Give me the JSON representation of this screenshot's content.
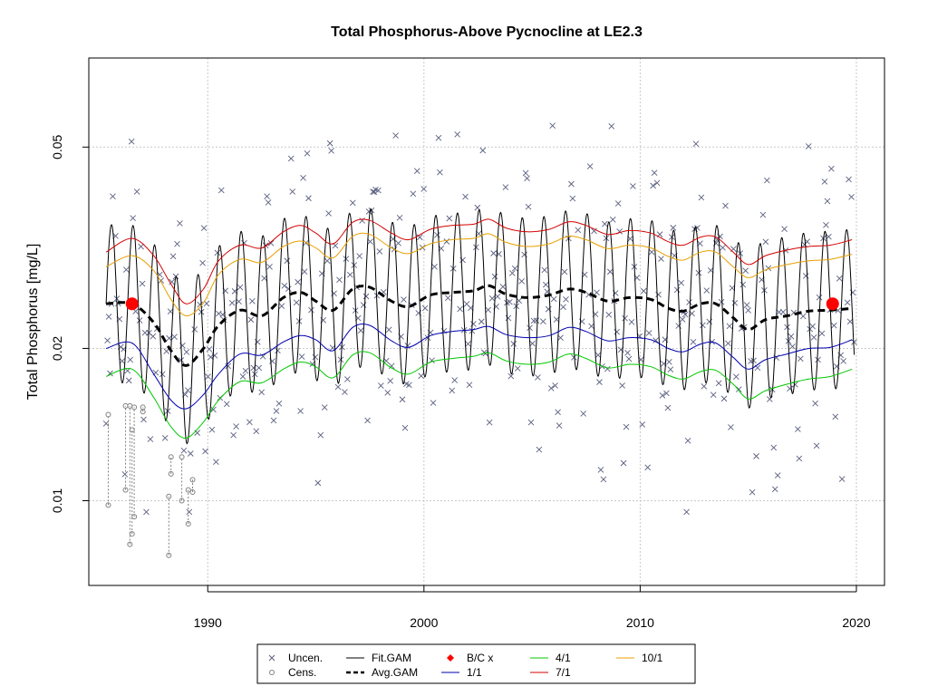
{
  "chart_data": {
    "type": "line",
    "title": "Total Phosphorus-Above Pycnocline at LE2.3",
    "xlabel": "",
    "ylabel": "Total Phosphorus [mg/L]",
    "y_scale": "log",
    "xlim": [
      1984.5,
      2021.3
    ],
    "ylim": [
      0.0068,
      0.075
    ],
    "x_ticks": [
      "1990",
      "2000",
      "2010",
      "2020"
    ],
    "x_tick_values": [
      1990,
      2000,
      2010,
      2020
    ],
    "y_ticks": [
      "0.01",
      "0.02",
      "0.05"
    ],
    "y_tick_values": [
      0.01,
      0.02,
      0.05
    ],
    "grid": true,
    "legend_position": "bottom",
    "series": [
      {
        "name": "Fit.GAM",
        "color": "#000000",
        "style": "solid",
        "x": [
          1985.3,
          2019.9
        ],
        "mean": [
          0.0245,
          0.0245
        ],
        "note_amplitude": "seasonal, about ±0.009"
      },
      {
        "name": "Avg.GAM",
        "color": "#000000",
        "style": "dashed",
        "x": [
          1985.3,
          1986.5,
          1987.5,
          1988.3,
          1989.0,
          1989.8,
          1990.5,
          1991.5,
          1992.5,
          1993.5,
          1994.3,
          1995.0,
          1995.8,
          1996.7,
          1997.5,
          1998.5,
          1999.3,
          2000.3,
          2001.3,
          2002.3,
          2003.0,
          2003.8,
          2004.8,
          2005.8,
          2006.7,
          2007.5,
          2008.5,
          2009.5,
          2010.5,
          2011.3,
          2012.0,
          2012.8,
          2013.5,
          2014.3,
          2015.0,
          2015.8,
          2016.8,
          2017.8,
          2018.8,
          2019.8
        ],
        "values": [
          0.0245,
          0.0245,
          0.0225,
          0.0198,
          0.0185,
          0.02,
          0.0222,
          0.0238,
          0.0232,
          0.0252,
          0.0258,
          0.0248,
          0.0238,
          0.0262,
          0.0264,
          0.0248,
          0.0242,
          0.0255,
          0.0258,
          0.026,
          0.0266,
          0.0256,
          0.0252,
          0.0255,
          0.0262,
          0.0258,
          0.0248,
          0.0252,
          0.025,
          0.024,
          0.0237,
          0.0245,
          0.0245,
          0.023,
          0.0218,
          0.0228,
          0.0232,
          0.0237,
          0.0238,
          0.024
        ]
      },
      {
        "name": "1/1",
        "color": "#0000b0",
        "style": "solid",
        "x": [
          1985.3,
          1986.5,
          1987.5,
          1988.3,
          1989.0,
          1989.8,
          1990.5,
          1991.5,
          1992.5,
          1993.5,
          1994.3,
          1995.0,
          1995.8,
          1996.7,
          1997.5,
          1998.5,
          1999.3,
          2000.3,
          2001.3,
          2002.3,
          2003.0,
          2003.8,
          2004.8,
          2005.8,
          2006.7,
          2007.5,
          2008.5,
          2009.5,
          2010.5,
          2011.3,
          2012.0,
          2012.8,
          2013.5,
          2014.3,
          2015.0,
          2015.8,
          2016.8,
          2017.8,
          2018.8,
          2019.8
        ],
        "values": [
          0.02,
          0.0205,
          0.0178,
          0.0158,
          0.0152,
          0.0162,
          0.0178,
          0.0195,
          0.0194,
          0.0206,
          0.0212,
          0.0208,
          0.0198,
          0.022,
          0.0222,
          0.0207,
          0.0201,
          0.0212,
          0.0216,
          0.0218,
          0.0221,
          0.0213,
          0.021,
          0.0212,
          0.022,
          0.0216,
          0.0207,
          0.021,
          0.0208,
          0.02,
          0.0197,
          0.0204,
          0.0205,
          0.0192,
          0.0182,
          0.019,
          0.0195,
          0.02,
          0.0201,
          0.0208
        ]
      },
      {
        "name": "4/1",
        "color": "#00c800",
        "style": "solid",
        "x": [
          1985.3,
          1986.5,
          1987.5,
          1988.3,
          1989.0,
          1989.8,
          1990.5,
          1991.5,
          1992.5,
          1993.5,
          1994.3,
          1995.0,
          1995.8,
          1996.7,
          1997.5,
          1998.5,
          1999.3,
          2000.3,
          2001.3,
          2002.3,
          2003.0,
          2003.8,
          2004.8,
          2005.8,
          2006.7,
          2007.5,
          2008.5,
          2009.5,
          2010.5,
          2011.3,
          2012.0,
          2012.8,
          2013.5,
          2014.3,
          2015.0,
          2015.8,
          2016.8,
          2017.8,
          2018.8,
          2019.8
        ],
        "values": [
          0.0176,
          0.0182,
          0.016,
          0.014,
          0.0133,
          0.0143,
          0.0158,
          0.0172,
          0.0171,
          0.0182,
          0.0188,
          0.0184,
          0.0175,
          0.0194,
          0.0196,
          0.0183,
          0.0178,
          0.0188,
          0.0191,
          0.0193,
          0.0196,
          0.0189,
          0.0186,
          0.0188,
          0.0195,
          0.0191,
          0.0183,
          0.0186,
          0.0184,
          0.0177,
          0.0174,
          0.018,
          0.0181,
          0.017,
          0.0159,
          0.0165,
          0.017,
          0.0174,
          0.0176,
          0.0182
        ]
      },
      {
        "name": "7/1",
        "color": "#d40000",
        "style": "solid",
        "x": [
          1985.3,
          1986.5,
          1987.5,
          1988.3,
          1989.0,
          1989.8,
          1990.5,
          1991.5,
          1992.5,
          1993.5,
          1994.3,
          1995.0,
          1995.8,
          1996.7,
          1997.5,
          1998.5,
          1999.3,
          2000.3,
          2001.3,
          2002.3,
          2003.0,
          2003.8,
          2004.8,
          2005.8,
          2006.7,
          2007.5,
          2008.5,
          2009.5,
          2010.5,
          2011.3,
          2012.0,
          2012.8,
          2013.5,
          2014.3,
          2015.0,
          2015.8,
          2016.8,
          2017.8,
          2018.8,
          2019.8
        ],
        "values": [
          0.031,
          0.033,
          0.0305,
          0.0268,
          0.0245,
          0.0262,
          0.0298,
          0.032,
          0.0316,
          0.034,
          0.035,
          0.0338,
          0.0322,
          0.0355,
          0.0358,
          0.0338,
          0.0328,
          0.0344,
          0.035,
          0.0352,
          0.036,
          0.0346,
          0.034,
          0.0344,
          0.0356,
          0.035,
          0.0336,
          0.0342,
          0.0338,
          0.0325,
          0.032,
          0.0332,
          0.0332,
          0.031,
          0.0293,
          0.0305,
          0.0313,
          0.0318,
          0.032,
          0.0328
        ]
      },
      {
        "name": "10/1",
        "color": "#e8a000",
        "style": "solid",
        "x": [
          1985.3,
          1986.5,
          1987.5,
          1988.3,
          1989.0,
          1989.8,
          1990.5,
          1991.5,
          1992.5,
          1993.5,
          1994.3,
          1995.0,
          1995.8,
          1996.7,
          1997.5,
          1998.5,
          1999.3,
          2000.3,
          2001.3,
          2002.3,
          2003.0,
          2003.8,
          2004.8,
          2005.8,
          2006.7,
          2007.5,
          2008.5,
          2009.5,
          2010.5,
          2011.3,
          2012.0,
          2012.8,
          2013.5,
          2014.3,
          2015.0,
          2015.8,
          2016.8,
          2017.8,
          2018.8,
          2019.8
        ],
        "values": [
          0.029,
          0.0305,
          0.0285,
          0.025,
          0.0232,
          0.0246,
          0.028,
          0.03,
          0.0296,
          0.0318,
          0.0326,
          0.0316,
          0.0302,
          0.0333,
          0.0336,
          0.0316,
          0.0308,
          0.0322,
          0.0328,
          0.033,
          0.0337,
          0.0324,
          0.0318,
          0.0322,
          0.0333,
          0.0328,
          0.0315,
          0.032,
          0.0316,
          0.0304,
          0.0299,
          0.031,
          0.031,
          0.029,
          0.0276,
          0.0286,
          0.0293,
          0.0298,
          0.03,
          0.0307
        ]
      }
    ],
    "bc_points": [
      {
        "x": 1986.5,
        "y": 0.0245
      },
      {
        "x": 2018.9,
        "y": 0.0245
      }
    ],
    "legend": [
      {
        "label": "Uncen.",
        "marker": "x",
        "color": "#5a6080"
      },
      {
        "label": "Cens.",
        "marker": "o",
        "color": "#808080"
      },
      {
        "label": "Fit.GAM",
        "marker": "line",
        "color": "#000000"
      },
      {
        "label": "Avg.GAM",
        "marker": "dashed",
        "color": "#000000"
      },
      {
        "label": "B/C x",
        "marker": "diamond",
        "color": "#ff0000"
      },
      {
        "label": "1/1",
        "marker": "line",
        "color": "#0000b0"
      },
      {
        "label": "4/1",
        "marker": "line",
        "color": "#00c800"
      },
      {
        "label": "7/1",
        "marker": "line",
        "color": "#d40000"
      },
      {
        "label": "10/1",
        "marker": "line",
        "color": "#e8a000"
      }
    ]
  }
}
